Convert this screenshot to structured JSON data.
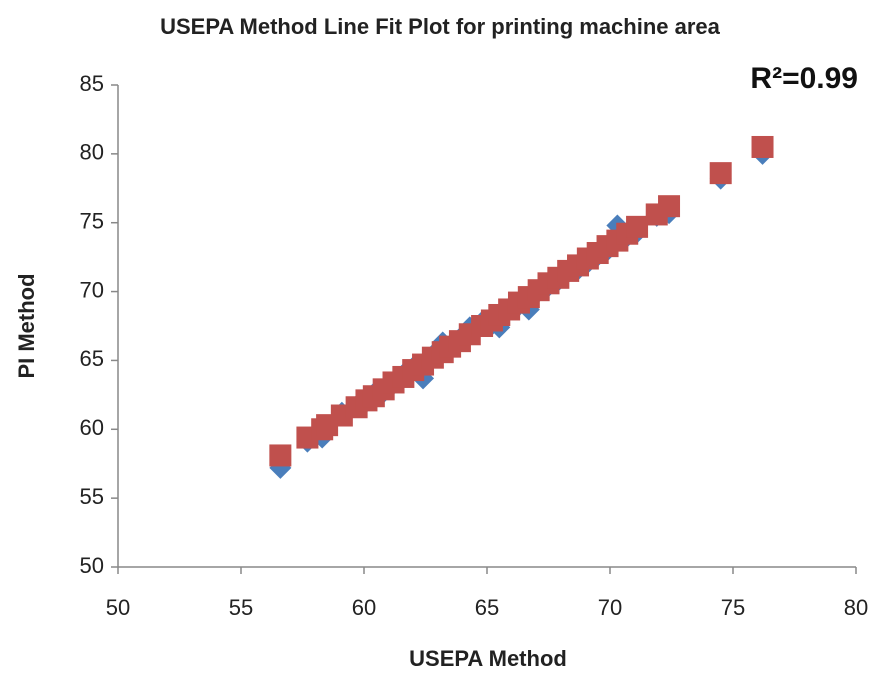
{
  "chart_data": {
    "type": "scatter",
    "title": "USEPA Method Line Fit  Plot for printing machine area",
    "annotation": "R²=0.99",
    "x_label": "USEPA Method",
    "y_label": "PI Method",
    "xlim": [
      50,
      80
    ],
    "ylim": [
      50,
      85
    ],
    "xticks": [
      50,
      55,
      60,
      65,
      70,
      75,
      80
    ],
    "yticks": [
      50,
      55,
      60,
      65,
      70,
      75,
      80,
      85
    ],
    "grid": false,
    "x": [
      56.6,
      57.7,
      58.3,
      58.5,
      59.1,
      59.7,
      60.1,
      60.4,
      60.8,
      61.2,
      61.6,
      62.0,
      62.4,
      62.8,
      63.2,
      63.5,
      63.9,
      64.3,
      64.8,
      65.2,
      65.5,
      65.9,
      66.3,
      66.7,
      67.1,
      67.5,
      67.9,
      68.3,
      68.7,
      69.1,
      69.5,
      69.9,
      70.3,
      70.7,
      71.1,
      71.9,
      72.4,
      74.5,
      76.2
    ],
    "series": [
      {
        "color": "#4a7ebb",
        "marker": "diamond",
        "values": [
          57.2,
          59.1,
          59.4,
          60.0,
          61.2,
          61.7,
          62.0,
          62.6,
          62.7,
          63.3,
          64.0,
          64.5,
          63.7,
          65.4,
          66.3,
          65.8,
          66.6,
          67.4,
          67.8,
          67.6,
          67.4,
          68.8,
          69.0,
          68.7,
          70.0,
          70.4,
          70.8,
          71.4,
          71.6,
          72.1,
          72.6,
          73.0,
          74.8,
          74.0,
          74.3,
          75.5,
          75.7,
          78.2,
          80.0
        ]
      },
      {
        "color": "#c0504d",
        "marker": "square",
        "values": [
          58.1,
          59.4,
          60.0,
          60.3,
          61.0,
          61.6,
          62.1,
          62.4,
          62.9,
          63.4,
          63.8,
          64.3,
          64.7,
          65.2,
          65.6,
          66.0,
          66.4,
          66.9,
          67.5,
          67.9,
          68.3,
          68.7,
          69.2,
          69.6,
          70.1,
          70.6,
          71.0,
          71.5,
          71.9,
          72.4,
          72.8,
          73.3,
          73.7,
          74.2,
          74.7,
          75.6,
          76.2,
          78.6,
          80.5
        ]
      }
    ]
  }
}
